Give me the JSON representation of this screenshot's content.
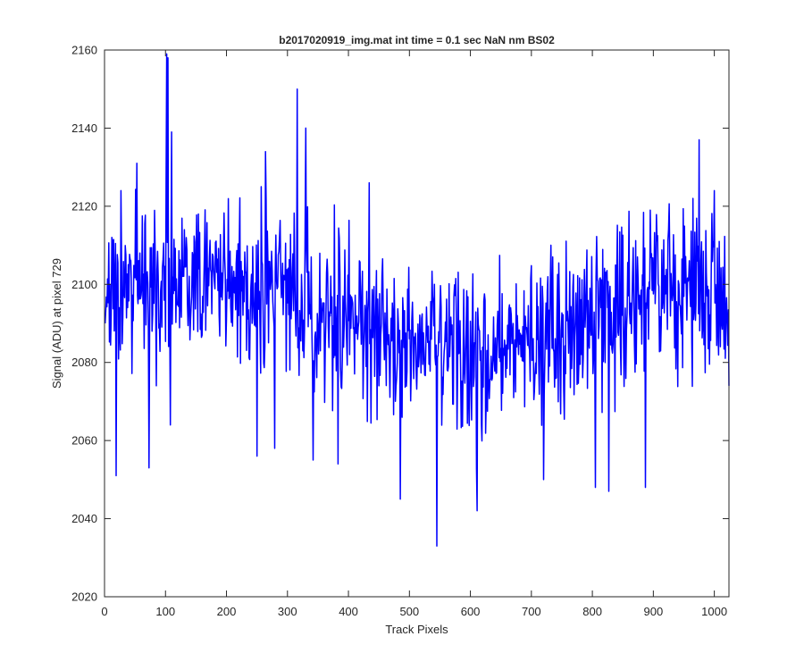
{
  "chart_data": {
    "type": "line",
    "title": "b2017020919_img.mat int time = 0.1 sec  NaN nm BS02",
    "xlabel": "Track Pixels",
    "ylabel": "Signal (ADU) at pixel 729",
    "xlim": [
      0,
      1024
    ],
    "ylim": [
      2020,
      2160
    ],
    "xticks": [
      0,
      100,
      200,
      300,
      400,
      500,
      600,
      700,
      800,
      900,
      1000
    ],
    "yticks": [
      2020,
      2040,
      2060,
      2080,
      2100,
      2120,
      2140,
      2160
    ],
    "grid": false,
    "series": [
      {
        "color": "#0000ff",
        "x_start": 1,
        "x_end": 1024,
        "keypoints": [
          {
            "x": 1,
            "y": 2090
          },
          {
            "x": 12,
            "y": 2112
          },
          {
            "x": 19,
            "y": 2051
          },
          {
            "x": 27,
            "y": 2124
          },
          {
            "x": 53,
            "y": 2131
          },
          {
            "x": 73,
            "y": 2053
          },
          {
            "x": 101,
            "y": 2125
          },
          {
            "x": 102,
            "y": 2159
          },
          {
            "x": 104,
            "y": 2158
          },
          {
            "x": 108,
            "y": 2064
          },
          {
            "x": 110,
            "y": 2139
          },
          {
            "x": 250,
            "y": 2056
          },
          {
            "x": 257,
            "y": 2125
          },
          {
            "x": 264,
            "y": 2134
          },
          {
            "x": 279,
            "y": 2058
          },
          {
            "x": 316,
            "y": 2150
          },
          {
            "x": 330,
            "y": 2140
          },
          {
            "x": 342,
            "y": 2055
          },
          {
            "x": 383,
            "y": 2054
          },
          {
            "x": 434,
            "y": 2126
          },
          {
            "x": 485,
            "y": 2045
          },
          {
            "x": 545,
            "y": 2033
          },
          {
            "x": 611,
            "y": 2042
          },
          {
            "x": 720,
            "y": 2050
          },
          {
            "x": 805,
            "y": 2048
          },
          {
            "x": 827,
            "y": 2047
          },
          {
            "x": 887,
            "y": 2048
          },
          {
            "x": 975,
            "y": 2137
          },
          {
            "x": 1000,
            "y": 2124
          },
          {
            "x": 1024,
            "y": 2074
          }
        ]
      }
    ]
  }
}
